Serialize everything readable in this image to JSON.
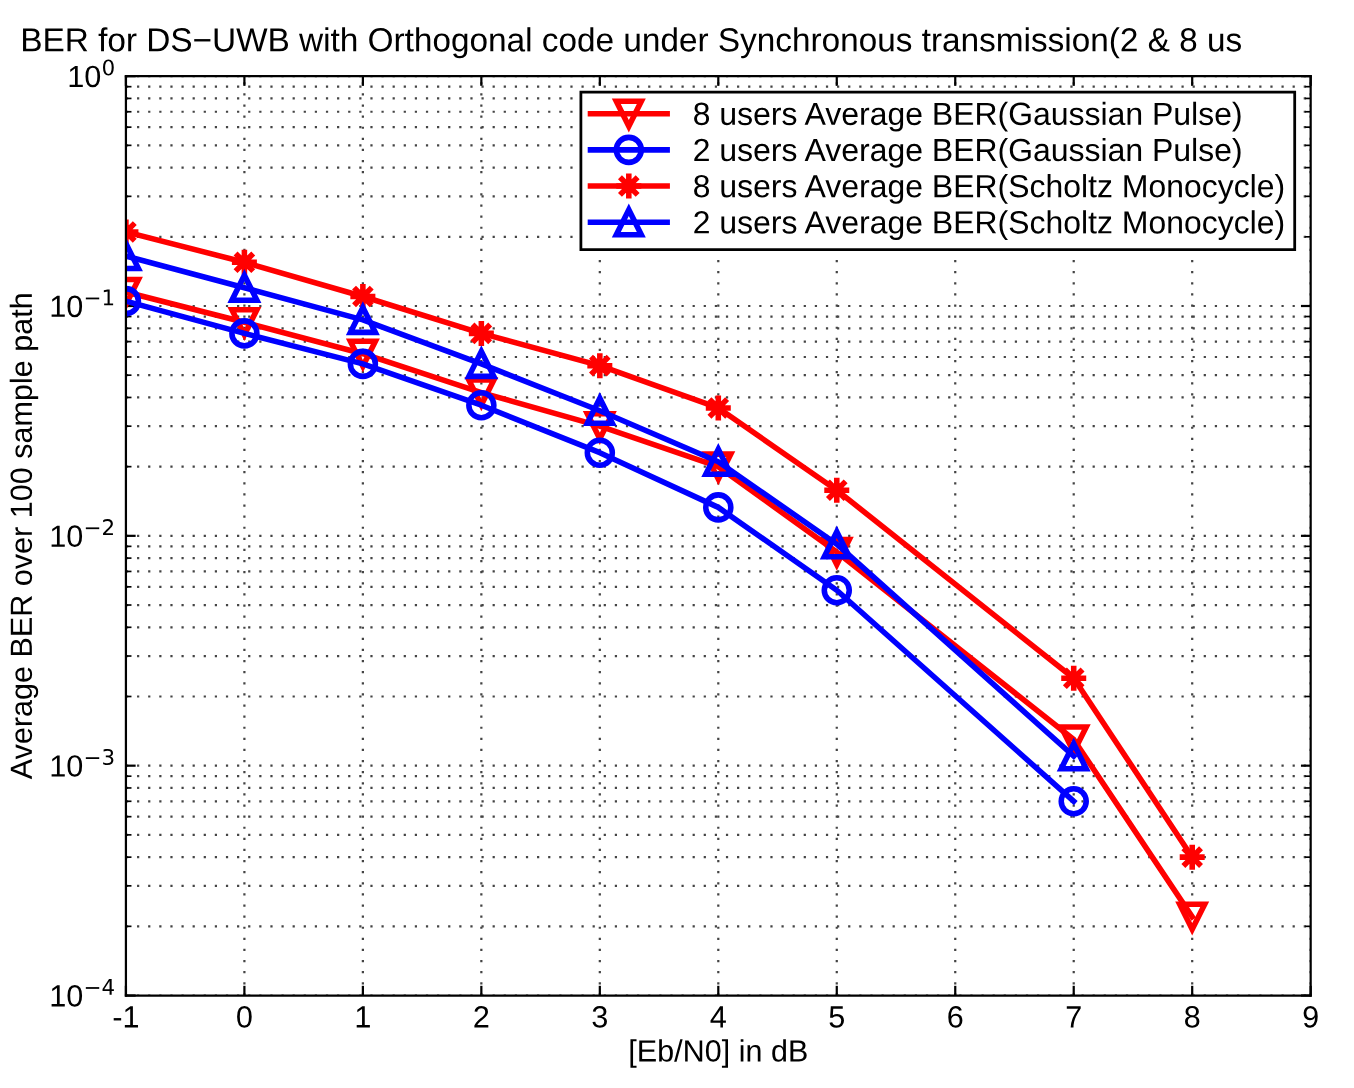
{
  "chart_data": {
    "type": "line",
    "title": "BER for DS−UWB with Orthogonal code under Synchronous transmission(2 & 8 us",
    "xlabel": "[Eb/N0] in dB",
    "ylabel": "Average BER over 100 sample path",
    "log": "y",
    "xlim": [
      -1,
      9
    ],
    "xticks": [
      -1,
      0,
      1,
      2,
      3,
      4,
      5,
      6,
      7,
      8,
      9
    ],
    "ylim": [
      0.0001,
      1
    ],
    "yticks": [
      {
        "value": 0.0001,
        "label": "10$^{−4}$"
      },
      {
        "value": 0.001,
        "label": "10$^{−3}$"
      },
      {
        "value": 0.01,
        "label": "10$^{−2}$"
      },
      {
        "value": 0.1,
        "label": "10$^{−1}$"
      },
      {
        "value": 1,
        "label": "10$^{0}$"
      }
    ],
    "grid": true,
    "legend": "top right",
    "line_style": "solid",
    "series": [
      {
        "name": "8 users Average BER(Gaussian Pulse)",
        "color": "#ff0000",
        "marker": "triangle_down",
        "x": [
          -1,
          0,
          1,
          2,
          3,
          4,
          5,
          7,
          8
        ],
        "values": [
          0.115,
          0.085,
          0.062,
          0.042,
          0.03,
          0.02,
          0.0085,
          0.0013,
          0.00022
        ]
      },
      {
        "name": "2 users Average BER(Gaussian Pulse)",
        "color": "#0000ff",
        "marker": "circle",
        "x": [
          -1,
          0,
          1,
          2,
          3,
          4,
          5,
          7
        ],
        "values": [
          0.105,
          0.076,
          0.056,
          0.037,
          0.023,
          0.0133,
          0.0058,
          0.0007
        ]
      },
      {
        "name": "8 users Average BER(Scholtz Monocycle)",
        "color": "#ff0000",
        "marker": "star",
        "x": [
          -1,
          0,
          1,
          2,
          3,
          4,
          5,
          7,
          8
        ],
        "values": [
          0.21,
          0.155,
          0.11,
          0.076,
          0.055,
          0.036,
          0.0158,
          0.0024,
          0.0004
        ]
      },
      {
        "name": "2 users Average BER(Scholtz Monocycle)",
        "color": "#0000ff",
        "marker": "triangle",
        "x": [
          -1,
          0,
          1,
          2,
          3,
          4,
          5,
          7
        ],
        "values": [
          0.165,
          0.12,
          0.087,
          0.056,
          0.035,
          0.021,
          0.0092,
          0.0011
        ]
      }
    ]
  }
}
